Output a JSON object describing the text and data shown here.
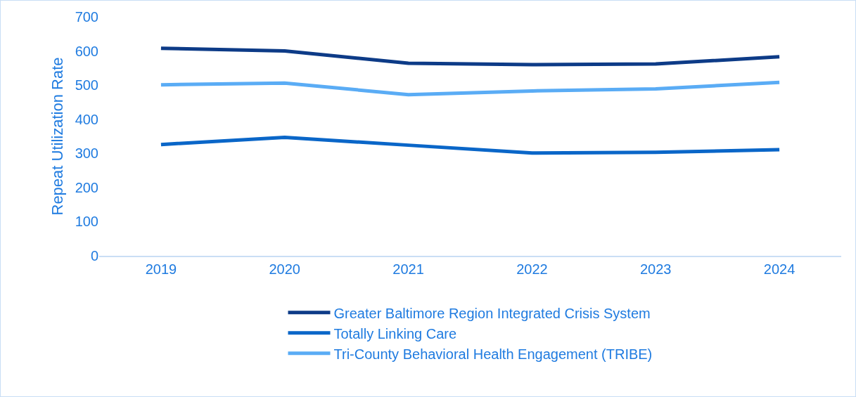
{
  "chart_data": {
    "type": "line",
    "ylabel": "Repeat Utilization Rate",
    "categories": [
      "2019",
      "2020",
      "2021",
      "2022",
      "2023",
      "2024"
    ],
    "series": [
      {
        "name": "Greater Baltimore Region Integrated Crisis System",
        "color": "#0d3b87",
        "values": [
          608,
          600,
          564,
          560,
          562,
          583
        ]
      },
      {
        "name": "Totally Linking Care",
        "color": "#0a66c8",
        "values": [
          326,
          347,
          324,
          301,
          303,
          311
        ]
      },
      {
        "name": "Tri-County Behavioral Health Engagement (TRIBE)",
        "color": "#5aacf5",
        "values": [
          501,
          506,
          472,
          483,
          489,
          508
        ]
      }
    ],
    "ylim": [
      0,
      700
    ],
    "yticks": [
      0,
      100,
      200,
      300,
      400,
      500,
      600,
      700
    ],
    "grid": false,
    "legend": "bottom",
    "marker": "none",
    "line_style": "solid"
  }
}
